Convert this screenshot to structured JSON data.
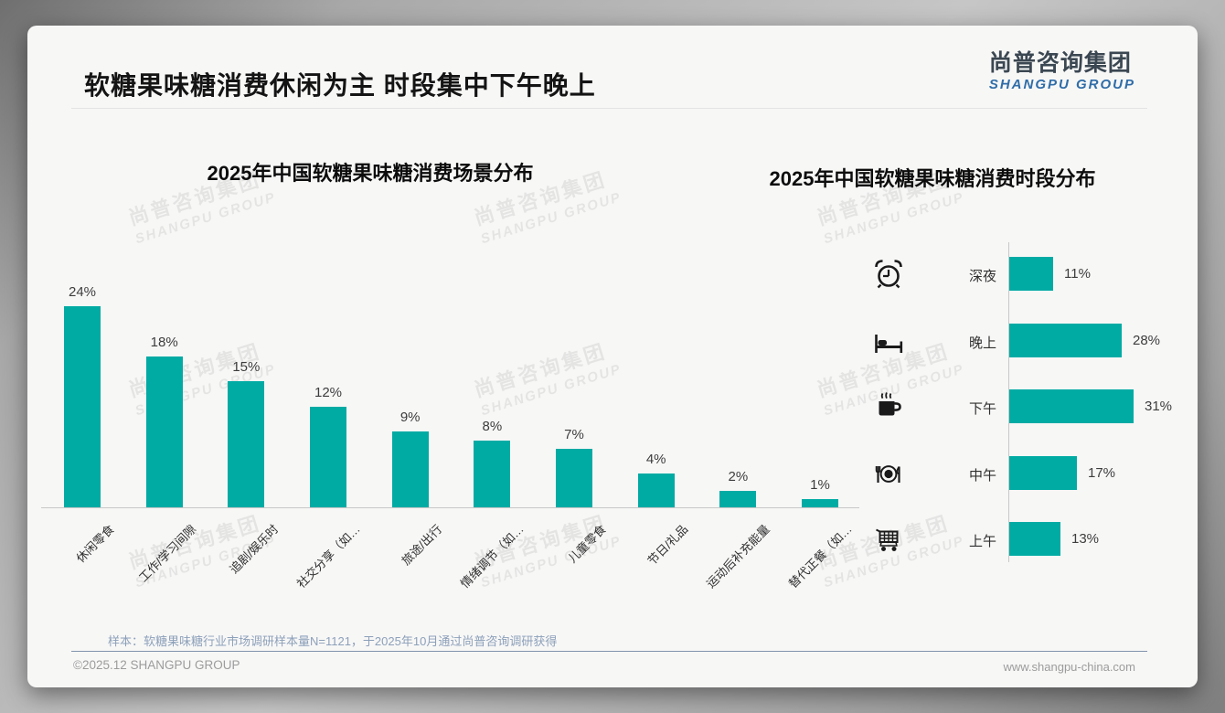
{
  "page": {
    "title": "软糖果味糖消费休闲为主 时段集中下午晚上",
    "logo": {
      "cn": "尚普咨询集团",
      "en": "SHANGPU GROUP"
    },
    "watermark": {
      "cn": "尚普咨询集团",
      "en": "SHANGPU GROUP"
    },
    "footer": {
      "sample_note": "样本：软糖果味糖行业市场调研样本量N=1121，于2025年10月通过尚普咨询调研获得",
      "copyright": "©2025.12 SHANGPU GROUP",
      "website": "www.shangpu-china.com"
    },
    "colors": {
      "accent_teal": "#00aba4",
      "logo_blue": "#2f6da8",
      "logo_dark": "#3b4752",
      "note_blue_gray": "#8da0ba"
    }
  },
  "chart_data": [
    {
      "type": "bar",
      "orientation": "vertical",
      "title": "2025年中国软糖果味糖消费场景分布",
      "categories": [
        "休闲零食",
        "工作/学习间隙",
        "追剧/娱乐时",
        "社交分享（如…",
        "旅途/出行",
        "情绪调节（如…",
        "儿童零食",
        "节日/礼品",
        "运动后补充能量",
        "替代正餐（如…"
      ],
      "values": [
        24,
        18,
        15,
        12,
        9,
        8,
        7,
        4,
        2,
        1
      ],
      "unit": "%",
      "bar_color": "#00aba4",
      "grid": false,
      "legend": "none"
    },
    {
      "type": "bar",
      "orientation": "horizontal",
      "title": "2025年中国软糖果味糖消费时段分布",
      "categories": [
        "深夜",
        "晚上",
        "下午",
        "中午",
        "上午"
      ],
      "values": [
        11,
        28,
        31,
        17,
        13
      ],
      "icons": [
        "alarm-clock-icon",
        "bed-icon",
        "coffee-icon",
        "dining-icon",
        "shopping-cart-icon"
      ],
      "unit": "%",
      "bar_color": "#00aba4",
      "grid": false,
      "legend": "none"
    }
  ]
}
